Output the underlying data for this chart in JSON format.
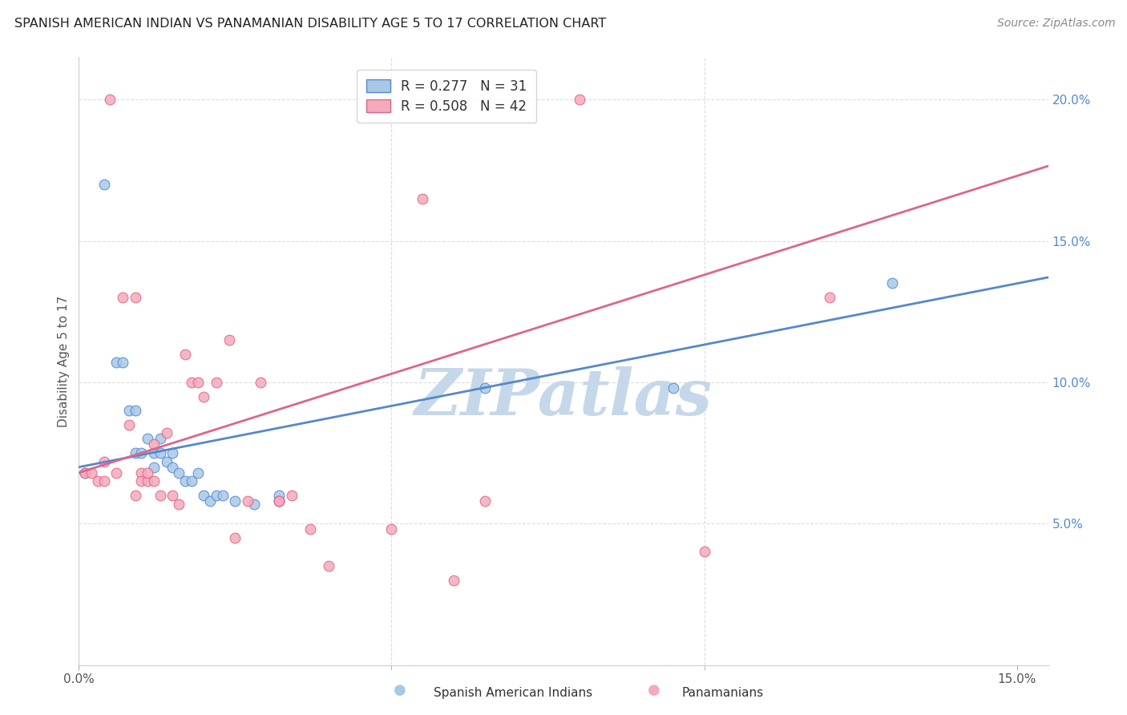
{
  "title": "SPANISH AMERICAN INDIAN VS PANAMANIAN DISABILITY AGE 5 TO 17 CORRELATION CHART",
  "source": "Source: ZipAtlas.com",
  "ylabel": "Disability Age 5 to 17",
  "xlim": [
    0.0,
    0.155
  ],
  "ylim": [
    0.0,
    0.215
  ],
  "xtick_positions": [
    0.0,
    0.15
  ],
  "xtick_labels": [
    "0.0%",
    "15.0%"
  ],
  "xtick_minor_positions": [
    0.05,
    0.1
  ],
  "yticks_right": [
    0.05,
    0.1,
    0.15,
    0.2
  ],
  "ytick_labels_right": [
    "5.0%",
    "10.0%",
    "15.0%",
    "20.0%"
  ],
  "legend_items": [
    {
      "label": "R = 0.277   N = 31",
      "color": "#a8c8e8"
    },
    {
      "label": "R = 0.508   N = 42",
      "color": "#f4aabb"
    }
  ],
  "legend_labels": [
    "Spanish American Indians",
    "Panamanians"
  ],
  "blue_fill": "#a8c8e8",
  "pink_fill": "#f4aabb",
  "blue_edge": "#5588cc",
  "pink_edge": "#dd6688",
  "blue_line": "#5588cc",
  "pink_line": "#dd6688",
  "watermark": "ZIPatlas",
  "watermark_color": "#c5d8ea",
  "grid_color": "#dddddd",
  "blue_points": [
    [
      0.001,
      0.068
    ],
    [
      0.004,
      0.17
    ],
    [
      0.006,
      0.107
    ],
    [
      0.007,
      0.107
    ],
    [
      0.008,
      0.09
    ],
    [
      0.009,
      0.075
    ],
    [
      0.009,
      0.09
    ],
    [
      0.01,
      0.075
    ],
    [
      0.011,
      0.08
    ],
    [
      0.012,
      0.075
    ],
    [
      0.012,
      0.07
    ],
    [
      0.013,
      0.08
    ],
    [
      0.013,
      0.075
    ],
    [
      0.014,
      0.072
    ],
    [
      0.015,
      0.075
    ],
    [
      0.015,
      0.07
    ],
    [
      0.016,
      0.068
    ],
    [
      0.017,
      0.065
    ],
    [
      0.018,
      0.065
    ],
    [
      0.019,
      0.068
    ],
    [
      0.02,
      0.06
    ],
    [
      0.021,
      0.058
    ],
    [
      0.022,
      0.06
    ],
    [
      0.023,
      0.06
    ],
    [
      0.025,
      0.058
    ],
    [
      0.028,
      0.057
    ],
    [
      0.032,
      0.06
    ],
    [
      0.032,
      0.058
    ],
    [
      0.065,
      0.098
    ],
    [
      0.095,
      0.098
    ],
    [
      0.13,
      0.135
    ]
  ],
  "pink_points": [
    [
      0.001,
      0.068
    ],
    [
      0.002,
      0.068
    ],
    [
      0.003,
      0.065
    ],
    [
      0.004,
      0.065
    ],
    [
      0.004,
      0.072
    ],
    [
      0.005,
      0.2
    ],
    [
      0.006,
      0.068
    ],
    [
      0.007,
      0.13
    ],
    [
      0.008,
      0.085
    ],
    [
      0.009,
      0.13
    ],
    [
      0.009,
      0.06
    ],
    [
      0.01,
      0.068
    ],
    [
      0.01,
      0.065
    ],
    [
      0.011,
      0.065
    ],
    [
      0.011,
      0.068
    ],
    [
      0.012,
      0.078
    ],
    [
      0.012,
      0.065
    ],
    [
      0.013,
      0.06
    ],
    [
      0.014,
      0.082
    ],
    [
      0.015,
      0.06
    ],
    [
      0.016,
      0.057
    ],
    [
      0.017,
      0.11
    ],
    [
      0.018,
      0.1
    ],
    [
      0.019,
      0.1
    ],
    [
      0.02,
      0.095
    ],
    [
      0.022,
      0.1
    ],
    [
      0.024,
      0.115
    ],
    [
      0.025,
      0.045
    ],
    [
      0.027,
      0.058
    ],
    [
      0.029,
      0.1
    ],
    [
      0.032,
      0.058
    ],
    [
      0.032,
      0.058
    ],
    [
      0.034,
      0.06
    ],
    [
      0.037,
      0.048
    ],
    [
      0.04,
      0.035
    ],
    [
      0.05,
      0.048
    ],
    [
      0.055,
      0.165
    ],
    [
      0.06,
      0.03
    ],
    [
      0.065,
      0.058
    ],
    [
      0.08,
      0.2
    ],
    [
      0.1,
      0.04
    ],
    [
      0.12,
      0.13
    ]
  ]
}
